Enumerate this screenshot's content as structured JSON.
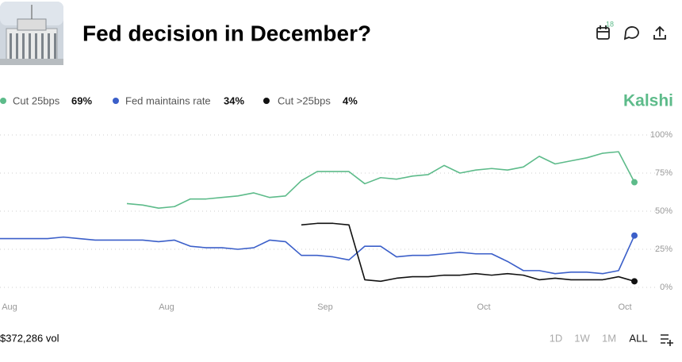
{
  "header": {
    "title": "Fed decision in December?",
    "badge": "18",
    "brand": "Kalshi"
  },
  "chart_data": {
    "type": "line",
    "categories": [
      "Aug",
      null,
      null,
      null,
      null,
      null,
      null,
      null,
      null,
      null,
      "Aug",
      null,
      null,
      null,
      null,
      null,
      null,
      null,
      null,
      null,
      "Sep",
      null,
      null,
      null,
      null,
      null,
      null,
      null,
      null,
      null,
      "Oct",
      null,
      null,
      null,
      null,
      null,
      null,
      null,
      null,
      null,
      "Oct"
    ],
    "series": [
      {
        "name": "Cut 25bps",
        "color": "#5dbb8a",
        "current": {
          "value": 69,
          "label": "69%"
        },
        "values": [
          null,
          null,
          null,
          null,
          null,
          null,
          null,
          null,
          55,
          54,
          52,
          53,
          58,
          58,
          59,
          60,
          62,
          59,
          60,
          70,
          76,
          76,
          76,
          68,
          72,
          71,
          73,
          74,
          80,
          75,
          77,
          78,
          77,
          79,
          86,
          81,
          83,
          85,
          88,
          89,
          69
        ]
      },
      {
        "name": "Fed maintains rate",
        "color": "#3b5fc9",
        "current": {
          "value": 34,
          "label": "34%"
        },
        "values": [
          32,
          32,
          32,
          32,
          33,
          32,
          31,
          31,
          31,
          31,
          30,
          31,
          27,
          26,
          26,
          25,
          26,
          31,
          30,
          21,
          21,
          20,
          18,
          27,
          27,
          20,
          21,
          21,
          22,
          23,
          22,
          22,
          17,
          11,
          11,
          9,
          10,
          10,
          9,
          11,
          34
        ]
      },
      {
        "name": "Cut >25bps",
        "color": "#111111",
        "current": {
          "value": 4,
          "label": "4%"
        },
        "values": [
          null,
          null,
          null,
          null,
          null,
          null,
          null,
          null,
          null,
          null,
          null,
          null,
          null,
          null,
          null,
          null,
          null,
          null,
          null,
          41,
          42,
          42,
          41,
          5,
          4,
          6,
          7,
          7,
          8,
          8,
          9,
          8,
          9,
          8,
          5,
          6,
          5,
          5,
          5,
          7,
          4
        ]
      }
    ],
    "ylim": [
      0,
      100
    ],
    "yticks": [
      {
        "value": 0,
        "label": "0%"
      },
      {
        "value": 25,
        "label": "25%"
      },
      {
        "value": 50,
        "label": "50%"
      },
      {
        "value": 75,
        "label": "75%"
      },
      {
        "value": 100,
        "label": "100%"
      }
    ],
    "grid": true
  },
  "footer": {
    "volume": "$372,286 vol",
    "ranges": [
      "1D",
      "1W",
      "1M",
      "ALL"
    ]
  }
}
